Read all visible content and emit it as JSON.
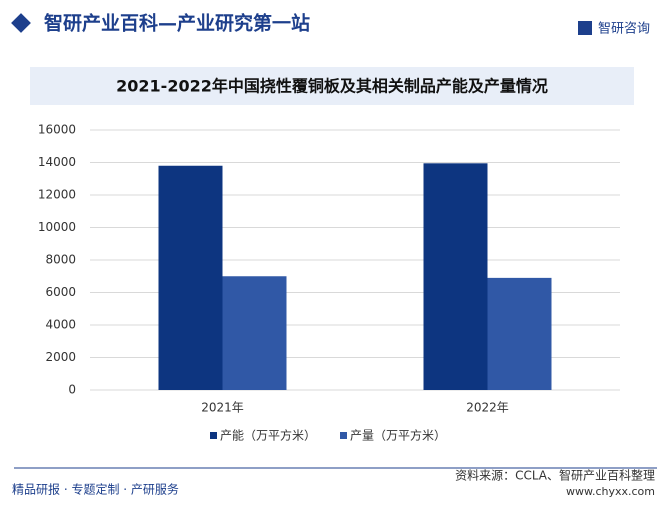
{
  "header": {
    "title": "智研产业百科—产业研究第一站",
    "logo": "智研咨询"
  },
  "chart_data": {
    "type": "bar",
    "title": "2021-2022年中国挠性覆铜板及其相关制品产能及产量情况",
    "categories": [
      "2021年",
      "2022年"
    ],
    "series": [
      {
        "name": "产能（万平方米）",
        "color": "#0d3580",
        "values": [
          13800,
          13950
        ]
      },
      {
        "name": "产量（万平方米）",
        "color": "#3058a6",
        "values": [
          7000,
          6900
        ]
      }
    ],
    "ylim": [
      0,
      16000
    ],
    "yticks": [
      0,
      2000,
      4000,
      6000,
      8000,
      10000,
      12000,
      14000,
      16000
    ],
    "grid": true
  },
  "footer": {
    "left": "精品研报 · 专题定制 · 产研服务",
    "source": "资料来源：CCLA、智研产业百科整理",
    "site": "www.chyxx.com"
  }
}
